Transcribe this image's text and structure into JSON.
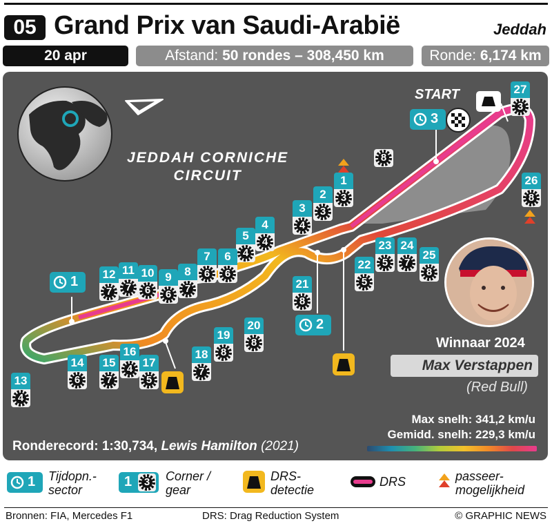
{
  "header": {
    "round": "05",
    "title": "Grand Prix van Saudi-Arabië",
    "city": "Jeddah",
    "date": "20 apr",
    "distance_label": "Afstand:",
    "distance_value": "50 rondes – 308,450 km",
    "lap_label": "Ronde:",
    "lap_value": "6,174 km"
  },
  "map": {
    "circuit_name_line1": "JEDDAH CORNICHE",
    "circuit_name_line2": "CIRCUIT",
    "start_label": "START",
    "sectors": [
      {
        "number": "1"
      },
      {
        "number": "2"
      },
      {
        "number": "3"
      }
    ],
    "corners": [
      {
        "corner": "1",
        "gear": "3"
      },
      {
        "corner": "2",
        "gear": "3"
      },
      {
        "corner": "3",
        "gear": "4"
      },
      {
        "corner": "4",
        "gear": "4"
      },
      {
        "corner": "5",
        "gear": "4"
      },
      {
        "corner": "6",
        "gear": "6"
      },
      {
        "corner": "7",
        "gear": "6"
      },
      {
        "corner": "8",
        "gear": "7"
      },
      {
        "corner": "9",
        "gear": "6"
      },
      {
        "corner": "10",
        "gear": "6"
      },
      {
        "corner": "11",
        "gear": "7"
      },
      {
        "corner": "12",
        "gear": "7"
      },
      {
        "corner": "13",
        "gear": "4"
      },
      {
        "corner": "14",
        "gear": "6"
      },
      {
        "corner": "15",
        "gear": "7"
      },
      {
        "corner": "16",
        "gear": "4"
      },
      {
        "corner": "17",
        "gear": "5"
      },
      {
        "corner": "18",
        "gear": "7"
      },
      {
        "corner": "19",
        "gear": "8"
      },
      {
        "corner": "20",
        "gear": "8"
      },
      {
        "corner": "21",
        "gear": "8"
      },
      {
        "corner": "22",
        "gear": "5"
      },
      {
        "corner": "23",
        "gear": "5"
      },
      {
        "corner": "24",
        "gear": "7"
      },
      {
        "corner": "25",
        "gear": "8"
      },
      {
        "corner": "26",
        "gear": "8"
      },
      {
        "corner": "27",
        "gear": "3"
      }
    ],
    "standalone_gear": "8",
    "winner_title": "Winnaar 2024",
    "winner_name": "Max Verstappen",
    "winner_team": "(Red Bull)",
    "max_speed": "Max snelh: 341,2 km/u",
    "avg_speed": "Gemidd. snelh: 229,3 km/u",
    "lap_record_label": "Ronderecord:",
    "lap_record_time": "1:30,734,",
    "lap_record_driver": "Lewis Hamilton",
    "lap_record_year": "(2021)"
  },
  "legend": {
    "sector_num": "1",
    "sector_text_1": "Tijdopn.-",
    "sector_text_2": "sector",
    "corner_num": "1",
    "gear_num": "3",
    "corner_text_1": "Corner /",
    "corner_text_2": "gear",
    "drs_detect_text_1": "DRS-",
    "drs_detect_text_2": "detectie",
    "drs_text": "DRS",
    "overtake_text_1": "passeer-",
    "overtake_text_2": "mogelijkheid"
  },
  "footer": {
    "sources": "Bronnen: FIA, Mercedes F1",
    "drs_note": "DRS: Drag Reduction System",
    "copyright": "© GRAPHIC NEWS"
  },
  "colors": {
    "teal": "#1fa6b8",
    "drs_pink": "#e83c8e",
    "drs_yellow": "#f2b81e",
    "arrow_red": "#e0402a",
    "arrow_orange": "#f2a21c"
  }
}
